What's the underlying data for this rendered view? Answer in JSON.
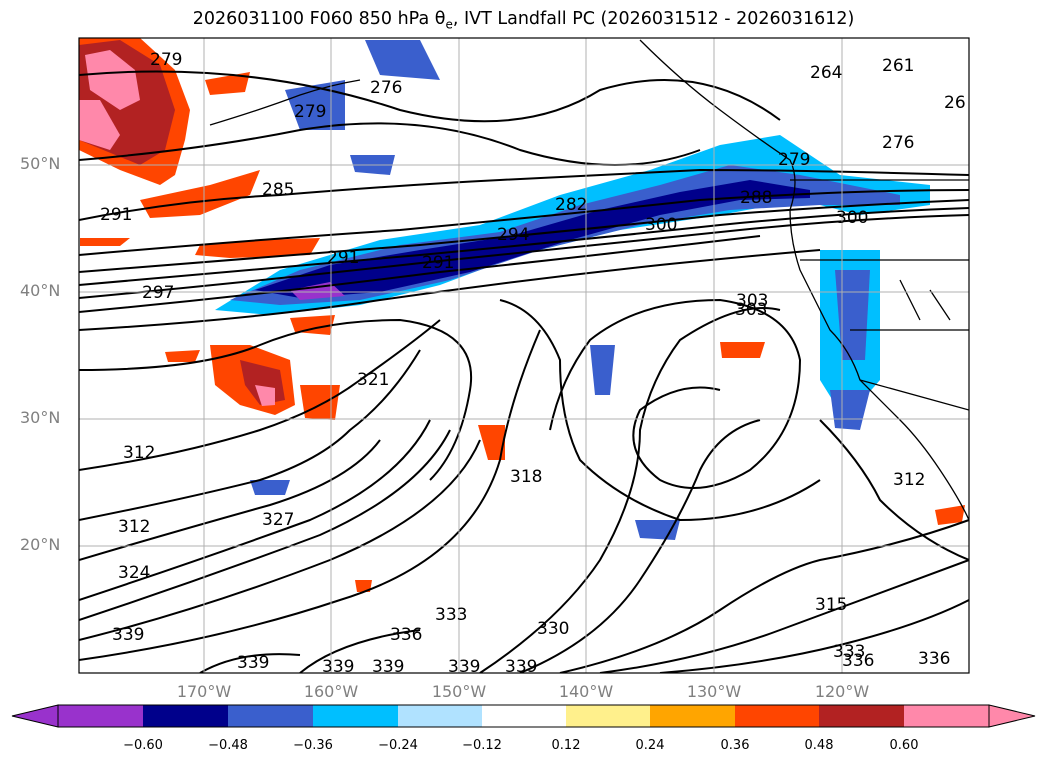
{
  "title": "2026031100 F060 850 hPa θ",
  "title_sub": "e",
  "title_rest": ", IVT Landfall PC (2026031512 - 2026031612)",
  "axes": {
    "lat_labels": [
      "50°N",
      "40°N",
      "30°N",
      "20°N"
    ],
    "lon_labels": [
      "170°W",
      "160°W",
      "150°W",
      "140°W",
      "130°W",
      "120°W"
    ]
  },
  "colorbar": {
    "ticks": [
      "−0.60",
      "−0.48",
      "−0.36",
      "−0.24",
      "−0.12",
      "0.12",
      "0.24",
      "0.36",
      "0.48",
      "0.60"
    ],
    "colors": [
      "#9932cc",
      "#00008b",
      "#3a5fcd",
      "#00bfff",
      "#b0e2ff",
      "#ffffff",
      "#fff08c",
      "#ffa500",
      "#ff4500",
      "#b22222",
      "#ff88aa"
    ]
  },
  "contour_labels": [
    "279",
    "276",
    "279",
    "264",
    "261",
    "26",
    "276",
    "279",
    "291",
    "285",
    "282",
    "288",
    "300",
    "294",
    "291",
    "291",
    "300",
    "303",
    "297",
    "303",
    "321",
    "312",
    "318",
    "312",
    "327",
    "312",
    "324",
    "315",
    "333",
    "330",
    "333",
    "336",
    "339",
    "339",
    "336",
    "339",
    "339",
    "339",
    "339",
    "336"
  ]
}
